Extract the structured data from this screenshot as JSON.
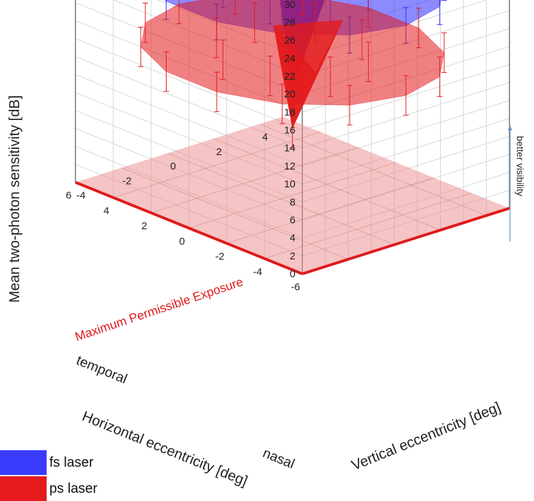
{
  "chart_data": {
    "type": "surface3d",
    "zlabel": "Mean two-photon sensitivity [dB]",
    "xlabel": "Horizontal eccentricity [deg]",
    "ylabel": "Vertical eccentricity [deg]",
    "zlim": [
      0,
      30
    ],
    "z_ticks": [
      "0",
      "2",
      "4",
      "6",
      "8",
      "10",
      "12",
      "14",
      "16",
      "18",
      "20",
      "22",
      "24",
      "26",
      "28",
      "30"
    ],
    "x_ticks": [
      "-6",
      "-4",
      "-2",
      "0",
      "2",
      "4",
      "6"
    ],
    "y_ticks": [
      "-4",
      "-2",
      "0",
      "2",
      "4"
    ],
    "x_side_labels": {
      "negative": "temporal",
      "positive": "nasal"
    },
    "threshold": {
      "label": "Maximum Permissible Exposure",
      "value": 0,
      "color": "#e0191b"
    },
    "annotation": "better visibility",
    "series": [
      {
        "name": "fs laser",
        "color": "#2b2bff",
        "peripheral": 24.0,
        "center": 12.0,
        "error_halfwidth": 2.0
      },
      {
        "name": "ps laser",
        "color": "#e41a1c",
        "peripheral": 16.2,
        "center": 7.5,
        "error_halfwidth": 2.2
      }
    ]
  },
  "legend": [
    {
      "label": "fs laser",
      "color": "#3a3aff"
    },
    {
      "label": "ps laser",
      "color": "#e41a1c"
    }
  ]
}
